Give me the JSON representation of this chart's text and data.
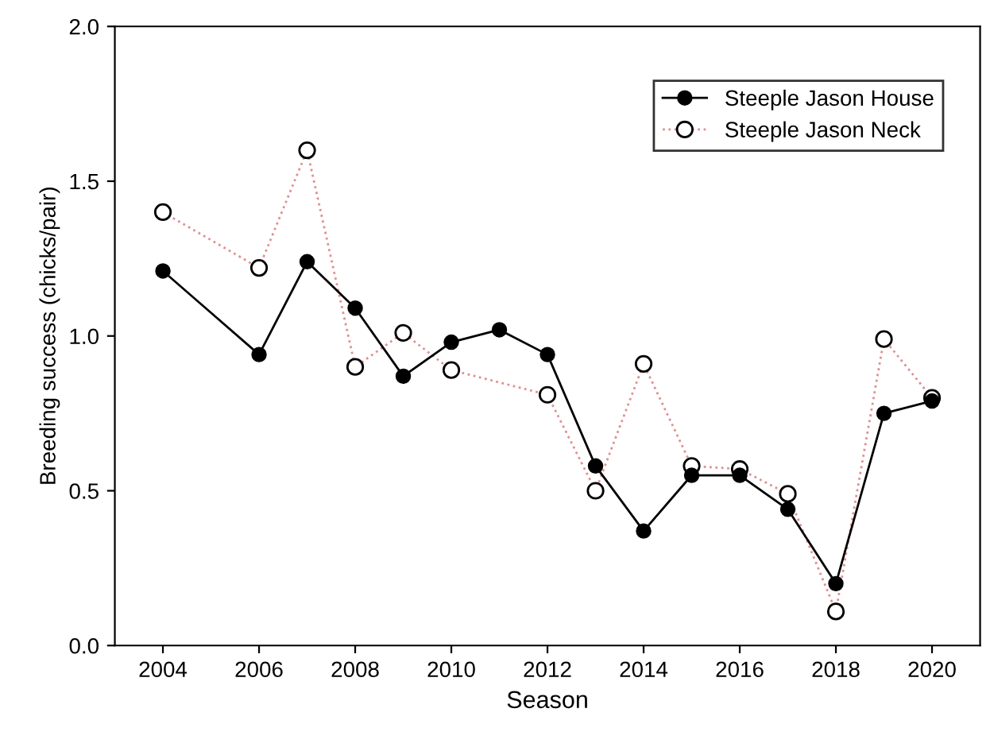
{
  "chart_data": {
    "type": "line",
    "xlabel": "Season",
    "ylabel": "Breeding success (chicks/pair)",
    "series": [
      {
        "name": "Steeple Jason House",
        "color": "#000000",
        "marker": "circle",
        "line_style": "solid",
        "x": [
          2004,
          2006,
          2007,
          2008,
          2009,
          2010,
          2011,
          2012,
          2013,
          2014,
          2015,
          2016,
          2017,
          2018,
          2019,
          2020
        ],
        "values": [
          1.21,
          0.94,
          1.24,
          1.09,
          0.87,
          0.98,
          1.02,
          0.94,
          0.58,
          0.37,
          0.55,
          0.55,
          0.44,
          0.2,
          0.75,
          0.79
        ]
      },
      {
        "name": "Steeple Jason Neck",
        "color": "#e09090",
        "marker": "circle",
        "line_style": "dotted",
        "x": [
          2004,
          2006,
          2007,
          2008,
          2009,
          2010,
          2012,
          2013,
          2014,
          2015,
          2016,
          2017,
          2018,
          2019,
          2020
        ],
        "values": [
          1.4,
          1.22,
          1.6,
          0.9,
          1.01,
          0.89,
          0.81,
          0.5,
          0.91,
          0.58,
          0.57,
          0.49,
          0.11,
          0.99,
          0.8
        ]
      }
    ],
    "xlim": [
      2003,
      2021
    ],
    "xticks": [
      2004,
      2006,
      2008,
      2010,
      2012,
      2014,
      2016,
      2018,
      2020
    ],
    "ylim": [
      0,
      2
    ],
    "yticks": [
      {
        "value": 0,
        "label": "0.0"
      },
      {
        "value": 0.5,
        "label": "0.5"
      },
      {
        "value": 1,
        "label": "1.0"
      },
      {
        "value": 1.5,
        "label": "1.5"
      },
      {
        "value": 2,
        "label": "2.0"
      }
    ],
    "grid": false,
    "legend": "top right"
  }
}
